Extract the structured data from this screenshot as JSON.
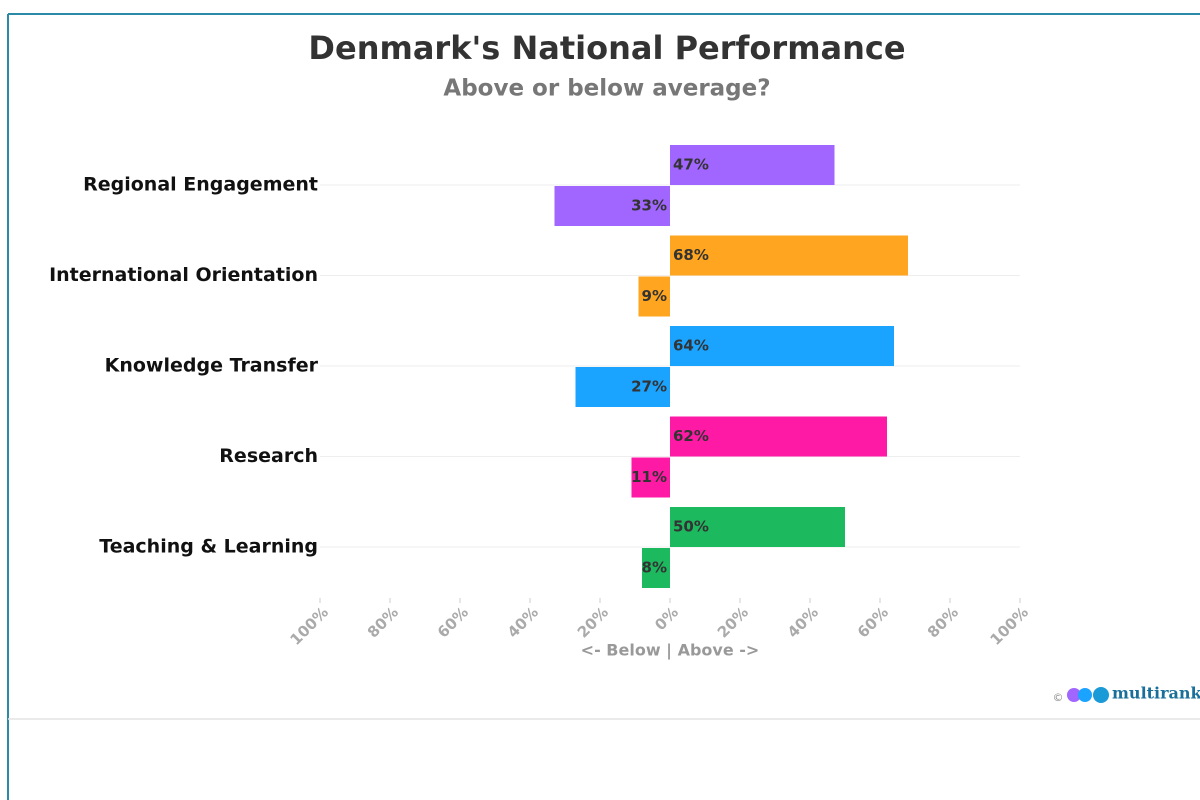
{
  "chart_data": {
    "type": "diverging_bar",
    "title": "Denmark's National Performance",
    "subtitle": "Above or below average?",
    "x_label": "<- Below | Above ->",
    "categories": [
      "Regional Engagement",
      "International Orientation",
      "Knowledge Transfer",
      "Research",
      "Teaching & Learning"
    ],
    "colors": [
      "#a066ff",
      "#ffa51f",
      "#1aa3ff",
      "#ff1aa6",
      "#1db95e"
    ],
    "series": [
      {
        "values": [
          47,
          68,
          64,
          62,
          50
        ],
        "value_labels": [
          "47%",
          "68%",
          "64%",
          "62%",
          "50%"
        ]
      },
      {
        "values": [
          -33,
          -9,
          -27,
          -11,
          -8
        ],
        "value_labels": [
          "33%",
          "9%",
          "27%",
          "11%",
          "8%"
        ]
      }
    ],
    "xlim": [
      -100,
      100
    ],
    "xticks": [
      {
        "value": -100,
        "label": "100%"
      },
      {
        "value": -80,
        "label": "80%"
      },
      {
        "value": -60,
        "label": "60%"
      },
      {
        "value": -40,
        "label": "40%"
      },
      {
        "value": -20,
        "label": "20%"
      },
      {
        "value": 0,
        "label": "0%"
      },
      {
        "value": 20,
        "label": "20%"
      },
      {
        "value": 40,
        "label": "40%"
      },
      {
        "value": 60,
        "label": "60%"
      },
      {
        "value": 80,
        "label": "80%"
      },
      {
        "value": 100,
        "label": "100%"
      }
    ],
    "grid": true,
    "logo": "multirank",
    "copyright": "©"
  }
}
